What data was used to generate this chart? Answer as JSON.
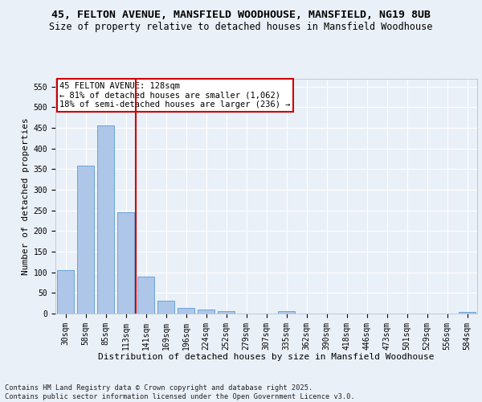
{
  "title_line1": "45, FELTON AVENUE, MANSFIELD WOODHOUSE, MANSFIELD, NG19 8UB",
  "title_line2": "Size of property relative to detached houses in Mansfield Woodhouse",
  "xlabel": "Distribution of detached houses by size in Mansfield Woodhouse",
  "ylabel": "Number of detached properties",
  "footer": "Contains HM Land Registry data © Crown copyright and database right 2025.\nContains public sector information licensed under the Open Government Licence v3.0.",
  "categories": [
    "30sqm",
    "58sqm",
    "85sqm",
    "113sqm",
    "141sqm",
    "169sqm",
    "196sqm",
    "224sqm",
    "252sqm",
    "279sqm",
    "307sqm",
    "335sqm",
    "362sqm",
    "390sqm",
    "418sqm",
    "446sqm",
    "473sqm",
    "501sqm",
    "529sqm",
    "556sqm",
    "584sqm"
  ],
  "values": [
    105,
    358,
    456,
    245,
    90,
    32,
    13,
    9,
    6,
    0,
    0,
    5,
    0,
    0,
    0,
    0,
    0,
    0,
    0,
    0,
    4
  ],
  "bar_color": "#aec6e8",
  "bar_edge_color": "#5b9bd5",
  "vline_color": "#cc0000",
  "annotation_title": "45 FELTON AVENUE: 128sqm",
  "annotation_line1": "← 81% of detached houses are smaller (1,062)",
  "annotation_line2": "18% of semi-detached houses are larger (236) →",
  "annotation_box_color": "#cc0000",
  "ylim": [
    0,
    570
  ],
  "yticks": [
    0,
    50,
    100,
    150,
    200,
    250,
    300,
    350,
    400,
    450,
    500,
    550
  ],
  "bg_color": "#eaf0f8",
  "plot_bg_color": "#eaf0f8",
  "title_fontsize": 9.5,
  "subtitle_fontsize": 8.5,
  "axis_label_fontsize": 8,
  "tick_fontsize": 7,
  "footer_fontsize": 6.2
}
